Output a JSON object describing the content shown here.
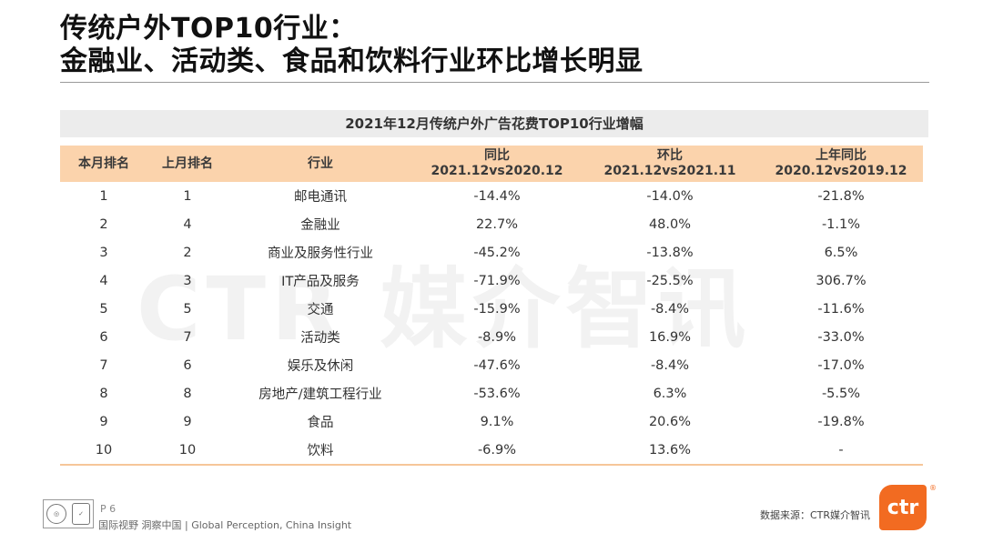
{
  "title": {
    "line1": "传统户外TOP10行业：",
    "line2": "金融业、活动类、食品和饮料行业环比增长明显"
  },
  "watermark": "CTR 媒介智讯",
  "table": {
    "caption": "2021年12月传统户外广告花费TOP10行业增幅",
    "headers": [
      {
        "line1": "本月排名",
        "line2": ""
      },
      {
        "line1": "上月排名",
        "line2": ""
      },
      {
        "line1": "行业",
        "line2": ""
      },
      {
        "line1": "同比",
        "line2": "2021.12vs2020.12"
      },
      {
        "line1": "环比",
        "line2": "2021.12vs2021.11"
      },
      {
        "line1": "上年同比",
        "line2": "2020.12vs2019.12"
      }
    ],
    "rows": [
      [
        "1",
        "1",
        "邮电通讯",
        "-14.4%",
        "-14.0%",
        "-21.8%"
      ],
      [
        "2",
        "4",
        "金融业",
        "22.7%",
        "48.0%",
        "-1.1%"
      ],
      [
        "3",
        "2",
        "商业及服务性行业",
        "-45.2%",
        "-13.8%",
        "6.5%"
      ],
      [
        "4",
        "3",
        "IT产品及服务",
        "-71.9%",
        "-25.5%",
        "306.7%"
      ],
      [
        "5",
        "5",
        "交通",
        "-15.9%",
        "-8.4%",
        "-11.6%"
      ],
      [
        "6",
        "7",
        "活动类",
        "-8.9%",
        "16.9%",
        "-33.0%"
      ],
      [
        "7",
        "6",
        "娱乐及休闲",
        "-47.6%",
        "-8.4%",
        "-17.0%"
      ],
      [
        "8",
        "8",
        "房地产/建筑工程行业",
        "-53.6%",
        "6.3%",
        "-5.5%"
      ],
      [
        "9",
        "9",
        "食品",
        "9.1%",
        "20.6%",
        "-19.8%"
      ],
      [
        "10",
        "10",
        "饮料",
        "-6.9%",
        "13.6%",
        "-"
      ]
    ]
  },
  "footer": {
    "page": "P 6",
    "slogan": "国际视野  洞察中国 | Global Perception, China Insight",
    "source": "数据来源：CTR媒介智讯",
    "logo_text": "ctr",
    "registered": "®"
  },
  "colors": {
    "header_bg": "#fbd3ac",
    "caption_bg": "#ececec",
    "brand": "#f26b21"
  }
}
